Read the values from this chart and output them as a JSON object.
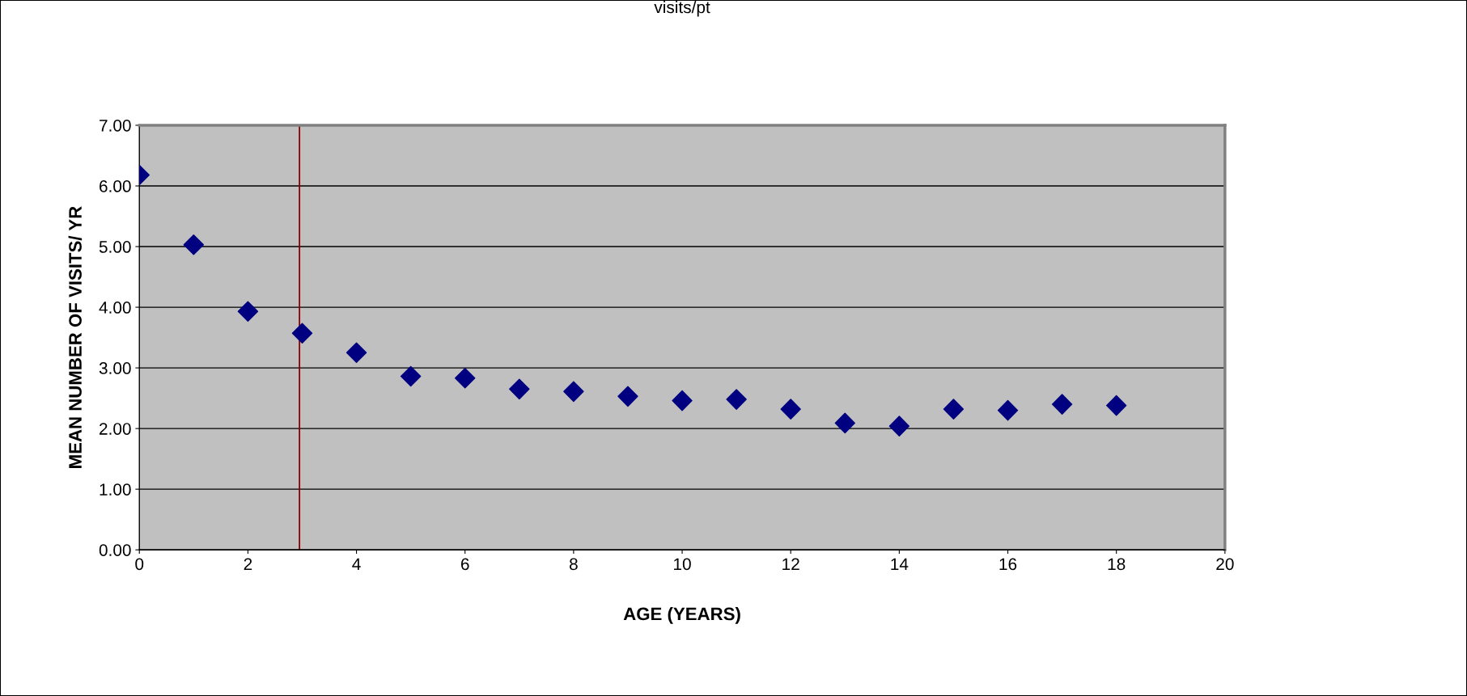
{
  "chart_data": {
    "type": "scatter",
    "title": "visits/pt",
    "xlabel": "AGE (YEARS)",
    "ylabel": "MEAN NUMBER OF VISITS/ YR",
    "x": [
      0,
      1,
      2,
      3,
      4,
      5,
      6,
      7,
      8,
      9,
      10,
      11,
      12,
      13,
      14,
      15,
      16,
      17,
      18
    ],
    "series": [
      {
        "color": "#000080",
        "values": [
          6.18,
          5.03,
          3.93,
          3.57,
          3.25,
          2.86,
          2.83,
          2.65,
          2.61,
          2.53,
          2.46,
          2.48,
          2.32,
          2.09,
          2.04,
          2.32,
          2.3,
          2.4,
          2.38
        ]
      }
    ],
    "xlim": [
      0,
      20
    ],
    "xticks": [
      0,
      2,
      4,
      6,
      8,
      10,
      12,
      14,
      16,
      18,
      20
    ],
    "ylim": [
      0,
      7
    ],
    "yticks": [
      {
        "value": 0,
        "label": "0.00"
      },
      {
        "value": 1,
        "label": "1.00"
      },
      {
        "value": 2,
        "label": "2.00"
      },
      {
        "value": 3,
        "label": "3.00"
      },
      {
        "value": 4,
        "label": "4.00"
      },
      {
        "value": 5,
        "label": "5.00"
      },
      {
        "value": 6,
        "label": "6.00"
      },
      {
        "value": 7,
        "label": "7.00"
      }
    ],
    "ref_lines": [
      {
        "axis": "x",
        "value": 2.95,
        "color": "#8b0000"
      }
    ],
    "grid": "y",
    "marker": "diamond",
    "legend": false
  }
}
